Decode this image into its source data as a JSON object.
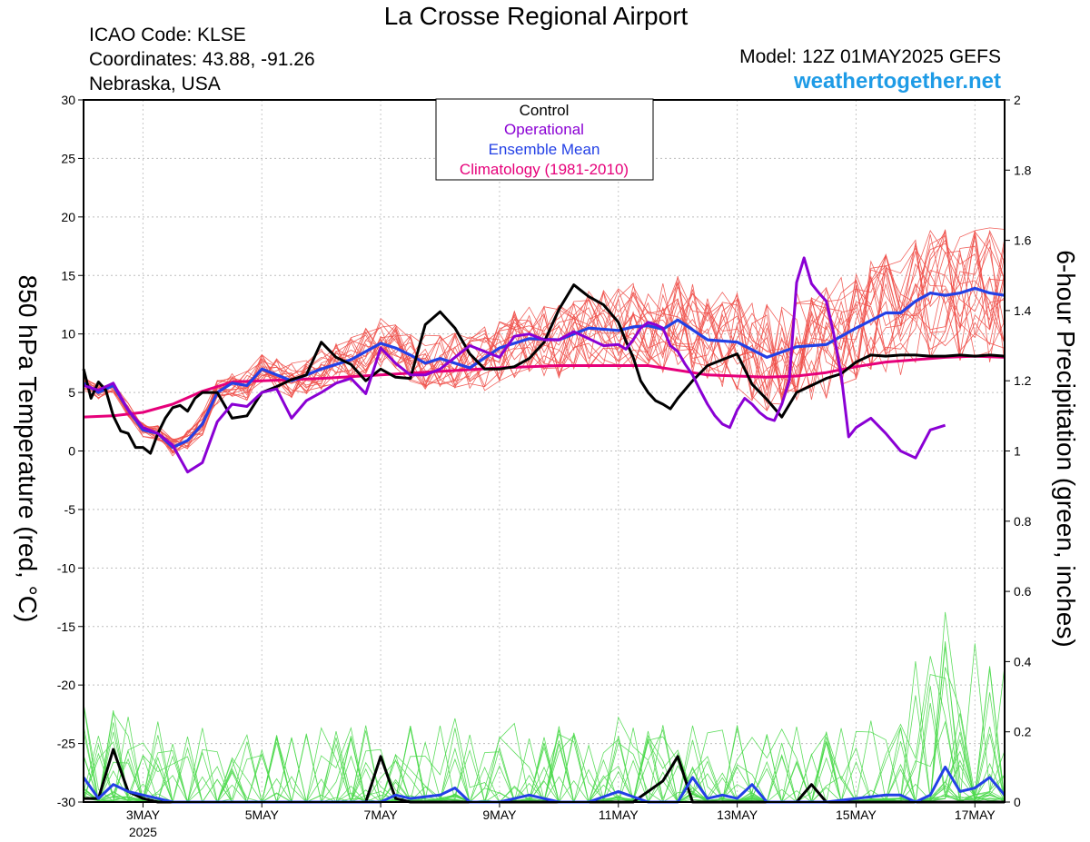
{
  "header": {
    "title": "La Crosse Regional Airport",
    "icao": "ICAO Code: KLSE",
    "coordinates": "Coordinates: 43.88, -91.26",
    "location": "Nebraska, USA",
    "model": "Model: 12Z 01MAY2025 GEFS",
    "site": "weathertogether.net"
  },
  "colors": {
    "control": "#000000",
    "operational": "#8a00d4",
    "ensemble_mean": "#2340e6",
    "climatology": "#e6007a",
    "members_temp": "#f0504a",
    "members_precip": "#4cd94c",
    "site_link": "#1e9be6"
  },
  "chart_data": {
    "type": "line",
    "title": "La Crosse Regional Airport",
    "ylabel": "850 hPa Temperature (red, °C)",
    "y2label": "6-hour Precipitation (green, inches)",
    "ylim": [
      -30,
      30
    ],
    "y2lim": [
      0,
      2
    ],
    "yticks": [
      30,
      25,
      20,
      15,
      10,
      5,
      0,
      -5,
      -10,
      -15,
      -20,
      -25,
      -30
    ],
    "y2ticks": [
      2,
      1.8,
      1.6,
      1.4,
      1.2,
      1,
      0.8,
      0.6,
      0.4,
      0.2,
      0
    ],
    "xlim": [
      1.0,
      16.5
    ],
    "x_unit": "days since 01MAY2025 00Z",
    "xticks": [
      {
        "x": 2,
        "label": "3MAY",
        "sub": "2025"
      },
      {
        "x": 4,
        "label": "5MAY",
        "sub": ""
      },
      {
        "x": 6,
        "label": "7MAY",
        "sub": ""
      },
      {
        "x": 8,
        "label": "9MAY",
        "sub": ""
      },
      {
        "x": 10,
        "label": "11MAY",
        "sub": ""
      },
      {
        "x": 12,
        "label": "13MAY",
        "sub": ""
      },
      {
        "x": 14,
        "label": "15MAY",
        "sub": ""
      },
      {
        "x": 16,
        "label": "17MAY",
        "sub": ""
      }
    ],
    "grid": true,
    "legend": {
      "position": "top-center",
      "entries": [
        "Control",
        "Operational",
        "Ensemble Mean",
        "Climatology (1981-2010)"
      ]
    },
    "series": [
      {
        "name": "Climatology (1981-2010)",
        "axis": "left",
        "x": [
          1.0,
          1.5,
          2.0,
          2.5,
          3.0,
          3.5,
          4.0,
          5.0,
          6.0,
          7.0,
          8.0,
          9.0,
          10.0,
          10.5,
          11.0,
          11.5,
          12.0,
          12.5,
          13.0,
          13.5,
          14.0,
          14.5,
          15.0,
          15.5,
          16.0,
          16.5
        ],
        "y": [
          2.9,
          3.0,
          3.3,
          4.0,
          5.1,
          5.9,
          6.0,
          6.2,
          6.5,
          6.8,
          7.1,
          7.3,
          7.3,
          7.3,
          6.9,
          6.5,
          6.4,
          6.3,
          6.4,
          6.7,
          7.2,
          7.6,
          7.8,
          8.0,
          8.1,
          8.0
        ]
      },
      {
        "name": "Ensemble Mean",
        "axis": "left",
        "x": [
          1.0,
          1.25,
          1.5,
          1.75,
          2.0,
          2.25,
          2.5,
          2.75,
          3.0,
          3.25,
          3.5,
          3.75,
          4.0,
          4.5,
          5.0,
          5.5,
          6.0,
          6.25,
          6.5,
          6.75,
          7.0,
          7.5,
          8.0,
          8.5,
          9.0,
          9.5,
          10.0,
          10.25,
          10.5,
          10.75,
          11.0,
          11.5,
          12.0,
          12.5,
          13.0,
          13.5,
          14.0,
          14.5,
          14.75,
          15.0,
          15.25,
          15.5,
          15.75,
          16.0,
          16.25,
          16.5
        ],
        "y": [
          5.8,
          5.0,
          5.6,
          3.5,
          1.8,
          1.5,
          0.3,
          0.9,
          2.3,
          5.0,
          5.8,
          5.6,
          7.0,
          6.0,
          7.0,
          7.8,
          9.2,
          8.8,
          8.2,
          7.5,
          7.9,
          7.1,
          8.8,
          9.6,
          9.5,
          10.5,
          10.3,
          10.6,
          10.7,
          10.4,
          11.2,
          9.5,
          9.3,
          8.0,
          8.9,
          9.1,
          10.5,
          11.8,
          11.8,
          12.8,
          13.5,
          13.3,
          13.5,
          13.9,
          13.5,
          13.3
        ]
      },
      {
        "name": "Control",
        "axis": "left",
        "x": [
          1.0,
          1.125,
          1.25,
          1.375,
          1.5,
          1.625,
          1.75,
          1.875,
          2.0,
          2.125,
          2.25,
          2.375,
          2.5,
          2.625,
          2.75,
          2.875,
          3.0,
          3.25,
          3.5,
          3.75,
          4.0,
          4.25,
          4.5,
          4.75,
          5.0,
          5.25,
          5.5,
          5.75,
          6.0,
          6.25,
          6.5,
          6.75,
          7.0,
          7.25,
          7.5,
          7.75,
          8.0,
          8.25,
          8.5,
          8.75,
          9.0,
          9.25,
          9.5,
          9.75,
          10.0,
          10.125,
          10.25,
          10.375,
          10.5,
          10.625,
          10.75,
          10.875,
          11.0,
          11.25,
          11.5,
          11.75,
          12.0,
          12.25,
          12.5,
          12.75,
          13.0,
          13.25,
          13.5,
          13.75,
          14.0,
          14.25,
          14.5,
          14.75,
          15.0,
          15.25,
          15.5,
          15.75,
          16.0,
          16.25,
          16.5
        ],
        "y": [
          7.0,
          4.5,
          5.9,
          5.2,
          3.0,
          1.7,
          1.5,
          0.3,
          0.3,
          -0.2,
          1.5,
          2.8,
          3.7,
          3.9,
          3.4,
          4.5,
          5.0,
          5.0,
          2.8,
          3.0,
          5.0,
          5.5,
          6.1,
          6.5,
          9.3,
          8.0,
          7.4,
          6.0,
          7.0,
          6.3,
          6.2,
          10.8,
          11.9,
          10.5,
          8.3,
          7.0,
          7.0,
          7.2,
          7.9,
          9.3,
          12.1,
          14.2,
          13.2,
          12.5,
          11.0,
          9.4,
          8.0,
          6.0,
          5.0,
          4.3,
          4.0,
          3.6,
          4.5,
          6.0,
          7.3,
          7.8,
          8.3,
          5.7,
          4.4,
          2.9,
          5.0,
          5.6,
          6.2,
          6.6,
          7.6,
          8.2,
          8.1,
          8.2,
          8.2,
          8.1,
          8.1,
          8.2,
          8.1,
          8.2,
          8.1
        ]
      },
      {
        "name": "Operational",
        "axis": "left",
        "x": [
          1.0,
          1.25,
          1.5,
          1.75,
          2.0,
          2.25,
          2.5,
          2.75,
          3.0,
          3.25,
          3.5,
          3.75,
          4.0,
          4.25,
          4.5,
          4.75,
          5.0,
          5.25,
          5.5,
          5.75,
          6.0,
          6.25,
          6.5,
          6.75,
          7.0,
          7.25,
          7.5,
          7.75,
          8.0,
          8.25,
          8.5,
          8.75,
          9.0,
          9.25,
          9.5,
          9.75,
          10.0,
          10.125,
          10.25,
          10.375,
          10.5,
          10.625,
          10.75,
          10.875,
          11.0,
          11.125,
          11.25,
          11.375,
          11.5,
          11.625,
          11.75,
          11.875,
          12.0,
          12.125,
          12.25,
          12.375,
          12.5,
          12.625,
          12.75,
          12.875,
          13.0,
          13.125,
          13.25,
          13.375,
          13.5,
          13.625,
          13.75,
          13.875,
          14.0,
          14.25,
          14.5,
          14.75,
          15.0,
          15.25,
          15.5
        ],
        "y": [
          5.6,
          5.2,
          5.8,
          3.5,
          2.0,
          1.5,
          0.5,
          -1.8,
          -1.0,
          2.5,
          4.0,
          3.8,
          5.0,
          5.3,
          2.8,
          4.3,
          5.0,
          5.8,
          6.2,
          4.9,
          8.8,
          7.5,
          6.5,
          6.5,
          7.0,
          8.0,
          9.0,
          8.5,
          8.0,
          9.8,
          10.0,
          9.5,
          9.5,
          10.2,
          9.6,
          9.0,
          9.1,
          8.7,
          9.5,
          10.5,
          11.0,
          10.8,
          10.5,
          9.0,
          8.5,
          7.4,
          6.5,
          5.2,
          4.0,
          3.0,
          2.3,
          2.0,
          3.5,
          4.5,
          4.0,
          3.3,
          2.8,
          2.6,
          4.0,
          6.0,
          14.4,
          16.5,
          14.3,
          13.5,
          12.8,
          10.0,
          6.5,
          1.2,
          2.0,
          2.8,
          1.5,
          0.0,
          -0.6,
          1.8,
          2.2
        ]
      },
      {
        "name": "Control precipitation",
        "axis": "right",
        "x": [
          1.0,
          1.25,
          1.5,
          1.75,
          2.0,
          2.25,
          2.5,
          3.0,
          4.0,
          5.0,
          5.75,
          6.0,
          6.25,
          6.5,
          7.0,
          8.0,
          9.0,
          10.0,
          10.25,
          10.5,
          10.75,
          11.0,
          11.25,
          11.5,
          12.0,
          13.0,
          13.25,
          13.5,
          14.0,
          15.0,
          16.0,
          16.5
        ],
        "y": [
          0.01,
          0.01,
          0.15,
          0.03,
          0.01,
          0.0,
          0.0,
          0.0,
          0.0,
          0.0,
          0.0,
          0.13,
          0.01,
          0.0,
          0.0,
          0.0,
          0.0,
          0.0,
          0.0,
          0.03,
          0.06,
          0.13,
          0.0,
          0.0,
          0.0,
          0.0,
          0.05,
          0.0,
          0.0,
          0.0,
          0.0,
          0.0
        ]
      },
      {
        "name": "Ensemble mean precipitation",
        "axis": "right",
        "x": [
          1.0,
          1.25,
          1.5,
          1.75,
          2.0,
          2.25,
          2.5,
          3.0,
          4.0,
          5.0,
          6.0,
          6.25,
          6.5,
          7.0,
          7.25,
          7.5,
          8.0,
          8.5,
          9.0,
          9.5,
          10.0,
          10.5,
          11.0,
          11.25,
          11.5,
          11.75,
          12.0,
          12.25,
          12.5,
          12.75,
          13.0,
          13.5,
          14.0,
          14.5,
          14.75,
          15.0,
          15.25,
          15.5,
          15.75,
          16.0,
          16.25,
          16.5
        ],
        "y": [
          0.07,
          0.01,
          0.05,
          0.03,
          0.02,
          0.01,
          0.0,
          0.0,
          0.0,
          0.0,
          0.0,
          0.02,
          0.01,
          0.02,
          0.04,
          0.0,
          0.0,
          0.02,
          0.0,
          0.0,
          0.03,
          0.0,
          0.0,
          0.07,
          0.01,
          0.02,
          0.01,
          0.05,
          0.0,
          0.0,
          0.0,
          0.0,
          0.01,
          0.02,
          0.02,
          0.0,
          0.02,
          0.1,
          0.03,
          0.04,
          0.07,
          0.02
        ]
      }
    ],
    "ensemble_members": {
      "axis": "left",
      "note": "20 thin member traces (red temperature, green precipitation) drawn around the mean",
      "count": 20
    }
  }
}
